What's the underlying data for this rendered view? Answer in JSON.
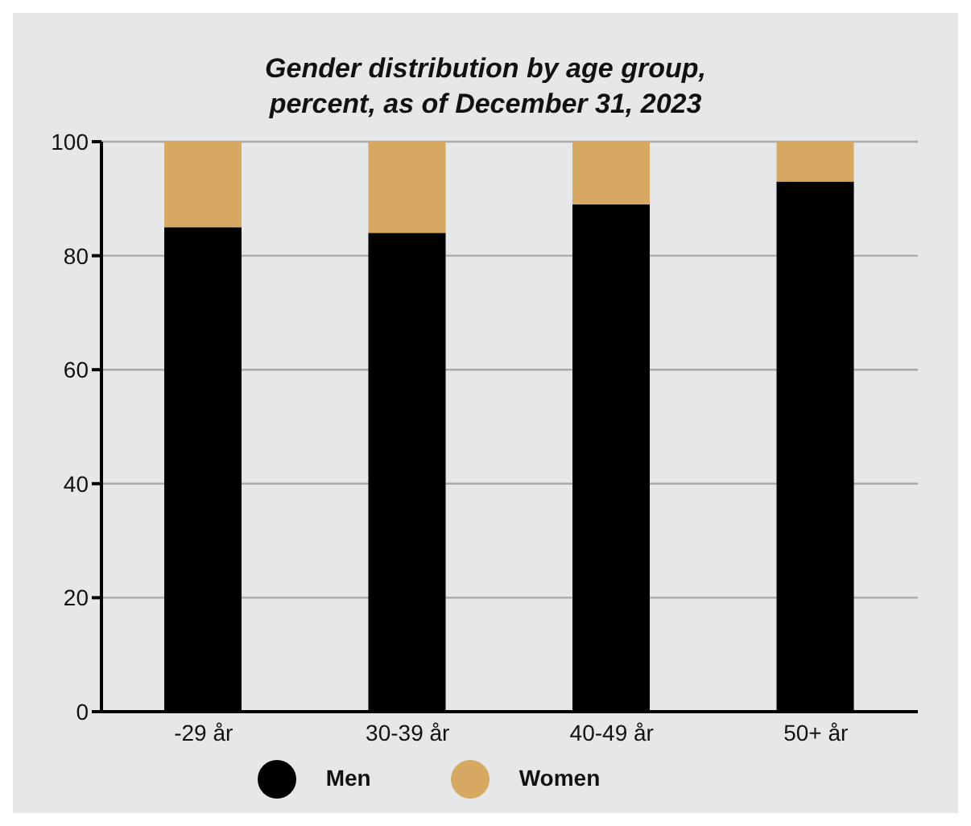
{
  "chart_data": {
    "type": "bar",
    "title": "Gender distribution by age group,\npercent, as of December 31, 2023",
    "categories": [
      "-29 år",
      "30-39 år",
      "40-49 år",
      "50+ år"
    ],
    "stacked": true,
    "series": [
      {
        "name": "Men",
        "color": "#000000",
        "values": [
          85,
          84,
          89,
          93
        ]
      },
      {
        "name": "Women",
        "color": "#d6a862",
        "values": [
          15,
          16,
          11,
          7
        ]
      }
    ],
    "ylim": [
      0,
      100
    ],
    "yticks": [
      0,
      20,
      40,
      60,
      80,
      100
    ],
    "grid": "y",
    "legend": "bottom"
  }
}
